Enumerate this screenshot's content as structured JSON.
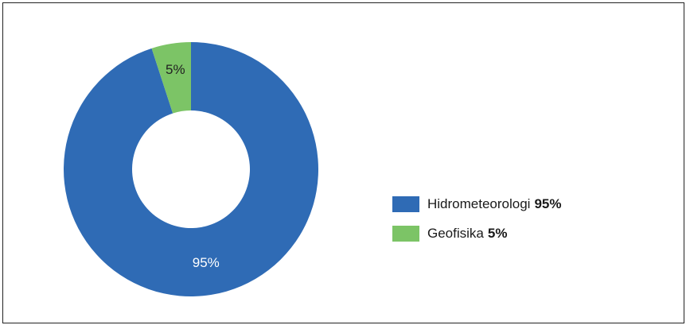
{
  "chart_data": {
    "type": "pie",
    "donut": true,
    "categories": [
      "Hidrometeorologi",
      "Geofisika"
    ],
    "values": [
      95,
      5
    ],
    "value_labels": [
      "95%",
      "5%"
    ],
    "colors": [
      "#2f6bb5",
      "#7cc466"
    ],
    "label_colors": [
      "#ffffff",
      "#222222"
    ],
    "legend": {
      "placement": "right",
      "items": [
        {
          "label": "Hidrometeorologi",
          "value": "95%",
          "color": "#2f6bb5"
        },
        {
          "label": "Geofisika",
          "value": "5%",
          "color": "#7cc466"
        }
      ]
    }
  }
}
